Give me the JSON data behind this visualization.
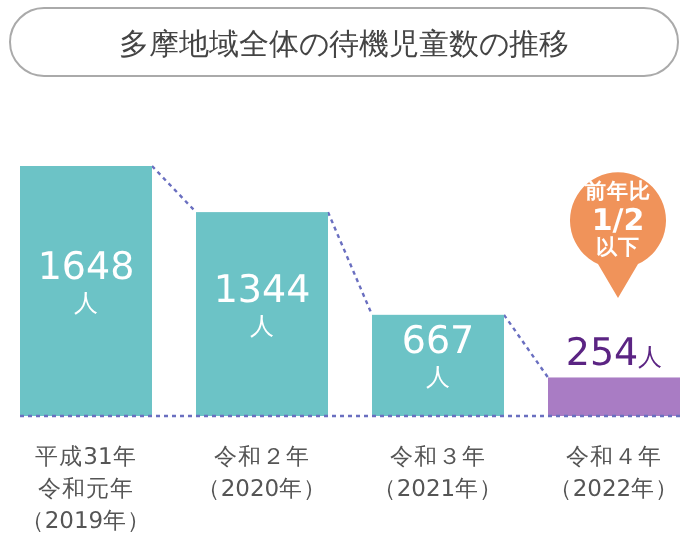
{
  "chart_data": {
    "type": "bar",
    "title": "多摩地域全体の待機児童数の推移",
    "categories": [
      "平成31年令和元年（2019年）",
      "令和２年（2020年）",
      "令和３年（2021年）",
      "令和４年（2022年）"
    ],
    "values": [
      1648,
      1344,
      667,
      254
    ],
    "colors": [
      "#6cc3c6",
      "#6cc3c6",
      "#6cc3c6",
      "#a97cc4"
    ],
    "value_labels": [
      "1648人",
      "1344人",
      "667人",
      "254人"
    ],
    "annotations": [
      "前年比\n1/2\n以下"
    ]
  }
}
